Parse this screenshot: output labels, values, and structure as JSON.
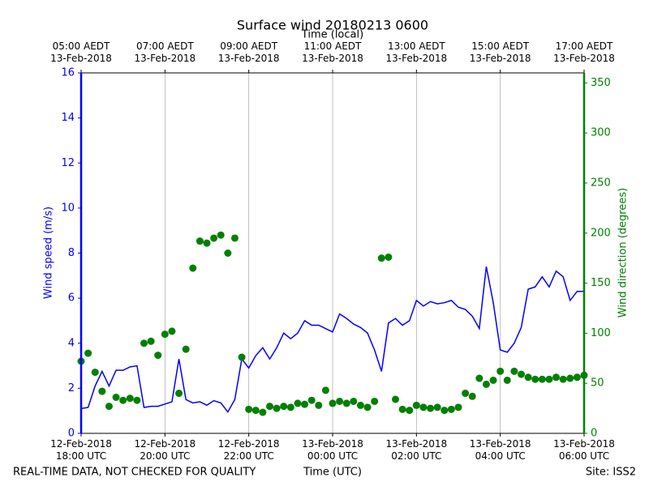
{
  "chart_data": {
    "type": "line",
    "title": "Surface wind 20180213 0600",
    "x_label": "Time (UTC)",
    "x2_label": "Time (local)",
    "y_label": "Wind speed (m/s)",
    "y2_label": "Wind direction (degrees)",
    "footer_left": "REAL-TIME DATA, NOT CHECKED FOR QUALITY",
    "footer_right": "Site: ISS2",
    "grid": true,
    "xlim": [
      "2018-02-12T18:00",
      "2018-02-13T06:00"
    ],
    "xticks": [
      {
        "value": "2018-02-12T18:00",
        "label": "12-Feb-2018\n18:00 UTC"
      },
      {
        "value": "2018-02-12T20:00",
        "label": "12-Feb-2018\n20:00 UTC"
      },
      {
        "value": "2018-02-12T22:00",
        "label": "12-Feb-2018\n22:00 UTC"
      },
      {
        "value": "2018-02-13T00:00",
        "label": "13-Feb-2018\n00:00 UTC"
      },
      {
        "value": "2018-02-13T02:00",
        "label": "13-Feb-2018\n02:00 UTC"
      },
      {
        "value": "2018-02-13T04:00",
        "label": "13-Feb-2018\n04:00 UTC"
      },
      {
        "value": "2018-02-13T06:00",
        "label": "13-Feb-2018\n06:00 UTC"
      }
    ],
    "x2ticks": [
      {
        "value": "2018-02-12T18:00",
        "label": "05:00 AEDT\n13-Feb-2018"
      },
      {
        "value": "2018-02-12T20:00",
        "label": "07:00 AEDT\n13-Feb-2018"
      },
      {
        "value": "2018-02-12T22:00",
        "label": "09:00 AEDT\n13-Feb-2018"
      },
      {
        "value": "2018-02-13T00:00",
        "label": "11:00 AEDT\n13-Feb-2018"
      },
      {
        "value": "2018-02-13T02:00",
        "label": "13:00 AEDT\n13-Feb-2018"
      },
      {
        "value": "2018-02-13T04:00",
        "label": "15:00 AEDT\n13-Feb-2018"
      },
      {
        "value": "2018-02-13T06:00",
        "label": "17:00 AEDT\n13-Feb-2018"
      }
    ],
    "ylim": [
      0,
      16
    ],
    "yticks": [
      0,
      2,
      4,
      6,
      8,
      10,
      12,
      14,
      16
    ],
    "y2lim": [
      0,
      360
    ],
    "y2ticks": [
      0,
      50,
      100,
      150,
      200,
      250,
      300,
      350
    ],
    "x": [
      "2018-02-12T18:00",
      "2018-02-12T18:10",
      "2018-02-12T18:20",
      "2018-02-12T18:30",
      "2018-02-12T18:40",
      "2018-02-12T18:50",
      "2018-02-12T19:00",
      "2018-02-12T19:10",
      "2018-02-12T19:20",
      "2018-02-12T19:30",
      "2018-02-12T19:40",
      "2018-02-12T19:50",
      "2018-02-12T20:00",
      "2018-02-12T20:10",
      "2018-02-12T20:20",
      "2018-02-12T20:30",
      "2018-02-12T20:40",
      "2018-02-12T20:50",
      "2018-02-12T21:00",
      "2018-02-12T21:10",
      "2018-02-12T21:20",
      "2018-02-12T21:30",
      "2018-02-12T21:40",
      "2018-02-12T21:50",
      "2018-02-12T22:00",
      "2018-02-12T22:10",
      "2018-02-12T22:20",
      "2018-02-12T22:30",
      "2018-02-12T22:40",
      "2018-02-12T22:50",
      "2018-02-12T23:00",
      "2018-02-12T23:10",
      "2018-02-12T23:20",
      "2018-02-12T23:30",
      "2018-02-12T23:40",
      "2018-02-12T23:50",
      "2018-02-13T00:00",
      "2018-02-13T00:10",
      "2018-02-13T00:20",
      "2018-02-13T00:30",
      "2018-02-13T00:40",
      "2018-02-13T00:50",
      "2018-02-13T01:00",
      "2018-02-13T01:10",
      "2018-02-13T01:20",
      "2018-02-13T01:30",
      "2018-02-13T01:40",
      "2018-02-13T01:50",
      "2018-02-13T02:00",
      "2018-02-13T02:10",
      "2018-02-13T02:20",
      "2018-02-13T02:30",
      "2018-02-13T02:40",
      "2018-02-13T02:50",
      "2018-02-13T03:00",
      "2018-02-13T03:10",
      "2018-02-13T03:20",
      "2018-02-13T03:30",
      "2018-02-13T03:40",
      "2018-02-13T03:50",
      "2018-02-13T04:00",
      "2018-02-13T04:10",
      "2018-02-13T04:20",
      "2018-02-13T04:30",
      "2018-02-13T04:40",
      "2018-02-13T04:50",
      "2018-02-13T05:00",
      "2018-02-13T05:10",
      "2018-02-13T05:20",
      "2018-02-13T05:30",
      "2018-02-13T05:40",
      "2018-02-13T05:50",
      "2018-02-13T06:00"
    ],
    "series": [
      {
        "name": "Wind speed",
        "color": "#0000ff",
        "style": "line",
        "axis": "y",
        "values": [
          1.1,
          1.15,
          2.1,
          2.75,
          2.1,
          2.8,
          2.8,
          2.95,
          3.0,
          1.15,
          1.2,
          1.2,
          1.3,
          1.4,
          3.3,
          1.5,
          1.35,
          1.4,
          1.25,
          1.45,
          1.35,
          0.95,
          1.5,
          3.3,
          2.9,
          3.45,
          3.8,
          3.3,
          3.8,
          4.45,
          4.2,
          4.45,
          5.0,
          4.8,
          4.8,
          4.65,
          4.5,
          5.3,
          5.1,
          4.85,
          4.7,
          4.45,
          3.7,
          2.75,
          4.9,
          5.1,
          4.8,
          5.0,
          5.9,
          5.65,
          5.85,
          5.75,
          5.8,
          5.9,
          5.6,
          5.5,
          5.2,
          4.65,
          7.4,
          5.8,
          3.7,
          3.6,
          4.0,
          4.7,
          6.4,
          6.5,
          6.95,
          6.5,
          7.2,
          6.95,
          5.9,
          6.3,
          6.3
        ]
      },
      {
        "name": "Wind direction",
        "color": "#008000",
        "style": "dots",
        "axis": "y2",
        "values": [
          72,
          80,
          61,
          42,
          27,
          36,
          33,
          35,
          33,
          90,
          92,
          78,
          99,
          102,
          40,
          84,
          165,
          192,
          190,
          195,
          198,
          180,
          195,
          76,
          24,
          23,
          21,
          27,
          25,
          27,
          26,
          30,
          29,
          33,
          28,
          43,
          30,
          32,
          30,
          32,
          28,
          26,
          32,
          175,
          176,
          34,
          24,
          23,
          28,
          26,
          25,
          26,
          23,
          24,
          26,
          40,
          37,
          55,
          49,
          53,
          62,
          53,
          62,
          59,
          56,
          54,
          54,
          54,
          56,
          54,
          55,
          56,
          58
        ]
      }
    ]
  }
}
